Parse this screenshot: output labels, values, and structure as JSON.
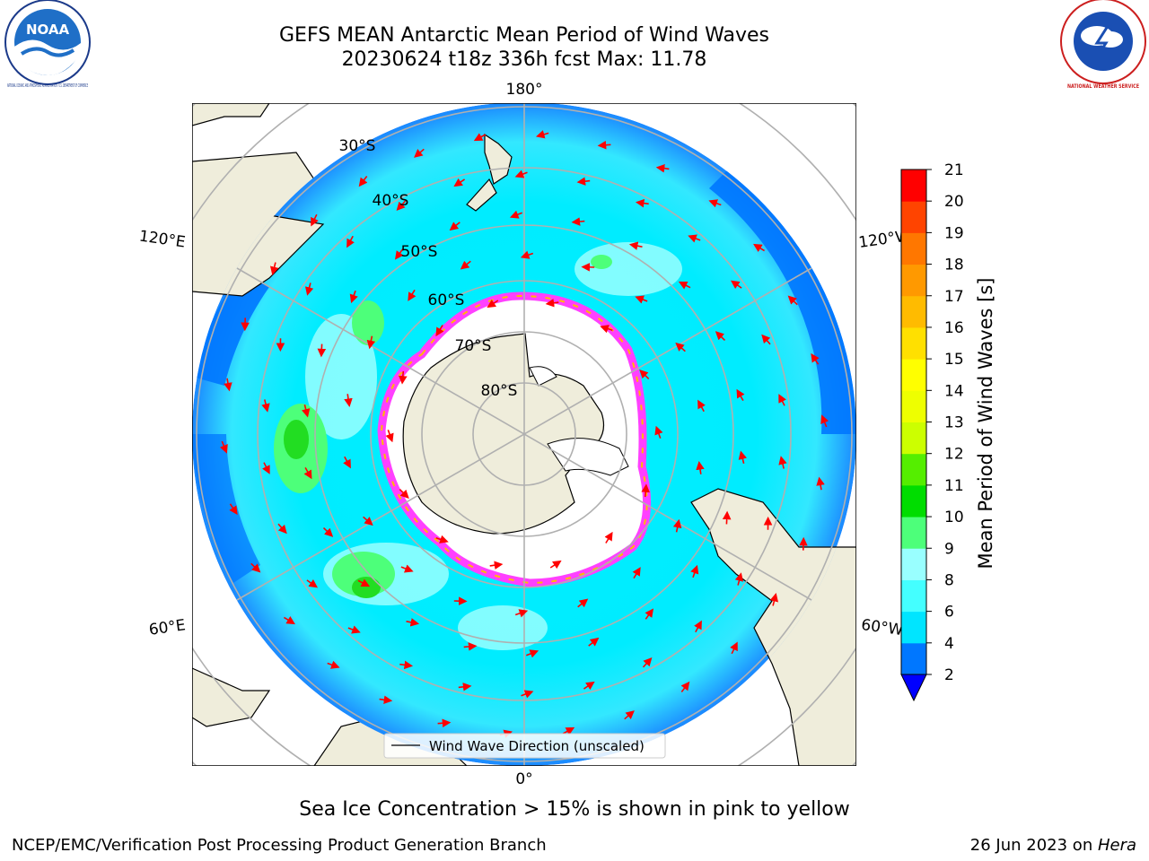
{
  "header": {
    "title_line1": "GEFS MEAN Antarctic Mean Period of Wind Waves",
    "title_line2": "20230624 t18z 336h fcst   Max: 11.78",
    "left_logo_text": "NOAA",
    "left_logo_ring_text": "NATIONAL OCEANIC AND ATMOSPHERIC ADMINISTRATION · U.S. DEPARTMENT OF COMMERCE",
    "right_logo_ring_text": "NATIONAL WEATHER SERVICE"
  },
  "map": {
    "lon_labels": {
      "top": "180°",
      "bottom": "0°",
      "left_upper": "120°E",
      "left_lower": "60°E",
      "right_upper": "120°W",
      "right_lower": "60°W"
    },
    "lat_labels": [
      "30°S",
      "40°S",
      "50°S",
      "60°S",
      "70°S",
      "80°S"
    ],
    "legend_label": "Wind Wave Direction (unscaled)",
    "colors": {
      "land": "#efeddb",
      "ocean_base": "#00ffff",
      "ice": "#ffffff",
      "ice_edge": "#ff40ff",
      "arrow": "#ff0000",
      "grid": "#b0b0b0"
    }
  },
  "colorbar": {
    "label": "Mean Period of Wind Waves [s]",
    "ticks": [
      "2",
      "4",
      "6",
      "8",
      "9",
      "10",
      "11",
      "12",
      "13",
      "14",
      "15",
      "16",
      "17",
      "18",
      "19",
      "20",
      "21"
    ],
    "colors": [
      "#0077ff",
      "#00e5ff",
      "#44ffff",
      "#99ffff",
      "#4dff7a",
      "#00dd00",
      "#55ee00",
      "#ccff00",
      "#eeff00",
      "#ffff00",
      "#ffe000",
      "#ffbb00",
      "#ff9900",
      "#ff7700",
      "#ff4400",
      "#ff0000"
    ],
    "under_color": "#0000ff"
  },
  "caption": "Sea Ice Concentration > 15% is shown in pink to yellow",
  "footer": {
    "left": "NCEP/EMC/Verification Post Processing Product Generation Branch",
    "right_date": "26 Jun 2023 on ",
    "right_host": "Hera"
  }
}
